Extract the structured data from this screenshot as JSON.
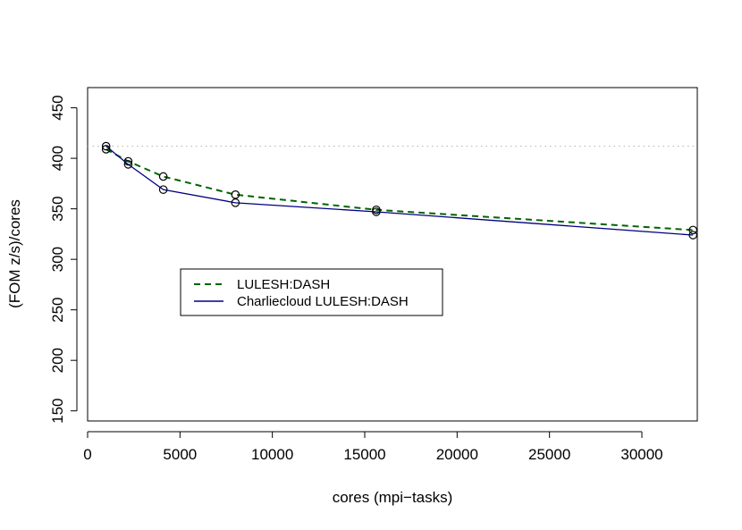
{
  "chart_data": {
    "type": "line",
    "title": "",
    "xlabel": "cores (mpi−tasks)",
    "ylabel": "(FOM z/s)/cores",
    "xlim": [
      0,
      33000
    ],
    "ylim": [
      140,
      470
    ],
    "x_ticks": [
      0,
      5000,
      10000,
      15000,
      20000,
      25000,
      30000
    ],
    "x_tick_labels": [
      "0",
      "5000",
      "10000",
      "15000",
      "20000",
      "25000",
      "30000"
    ],
    "y_ticks": [
      150,
      200,
      250,
      300,
      350,
      400,
      450
    ],
    "y_tick_labels": [
      "150",
      "200",
      "250",
      "300",
      "350",
      "400",
      "450"
    ],
    "reference_line": {
      "y": 412,
      "style": "dotted",
      "color": "#bbbbbb"
    },
    "grid": false,
    "legend_position": "center-left",
    "series": [
      {
        "name": "LULESH:DASH",
        "color": "#006400",
        "line_style": "dashed",
        "x": [
          1000,
          2197,
          4096,
          8000,
          15625,
          32768
        ],
        "y": [
          409,
          397,
          382,
          364,
          349,
          329
        ]
      },
      {
        "name": "Charliecloud LULESH:DASH",
        "color": "#000080",
        "line_style": "solid",
        "x": [
          1000,
          2197,
          4096,
          8000,
          15625,
          32768
        ],
        "y": [
          412,
          394,
          369,
          356,
          347,
          324
        ]
      }
    ]
  }
}
